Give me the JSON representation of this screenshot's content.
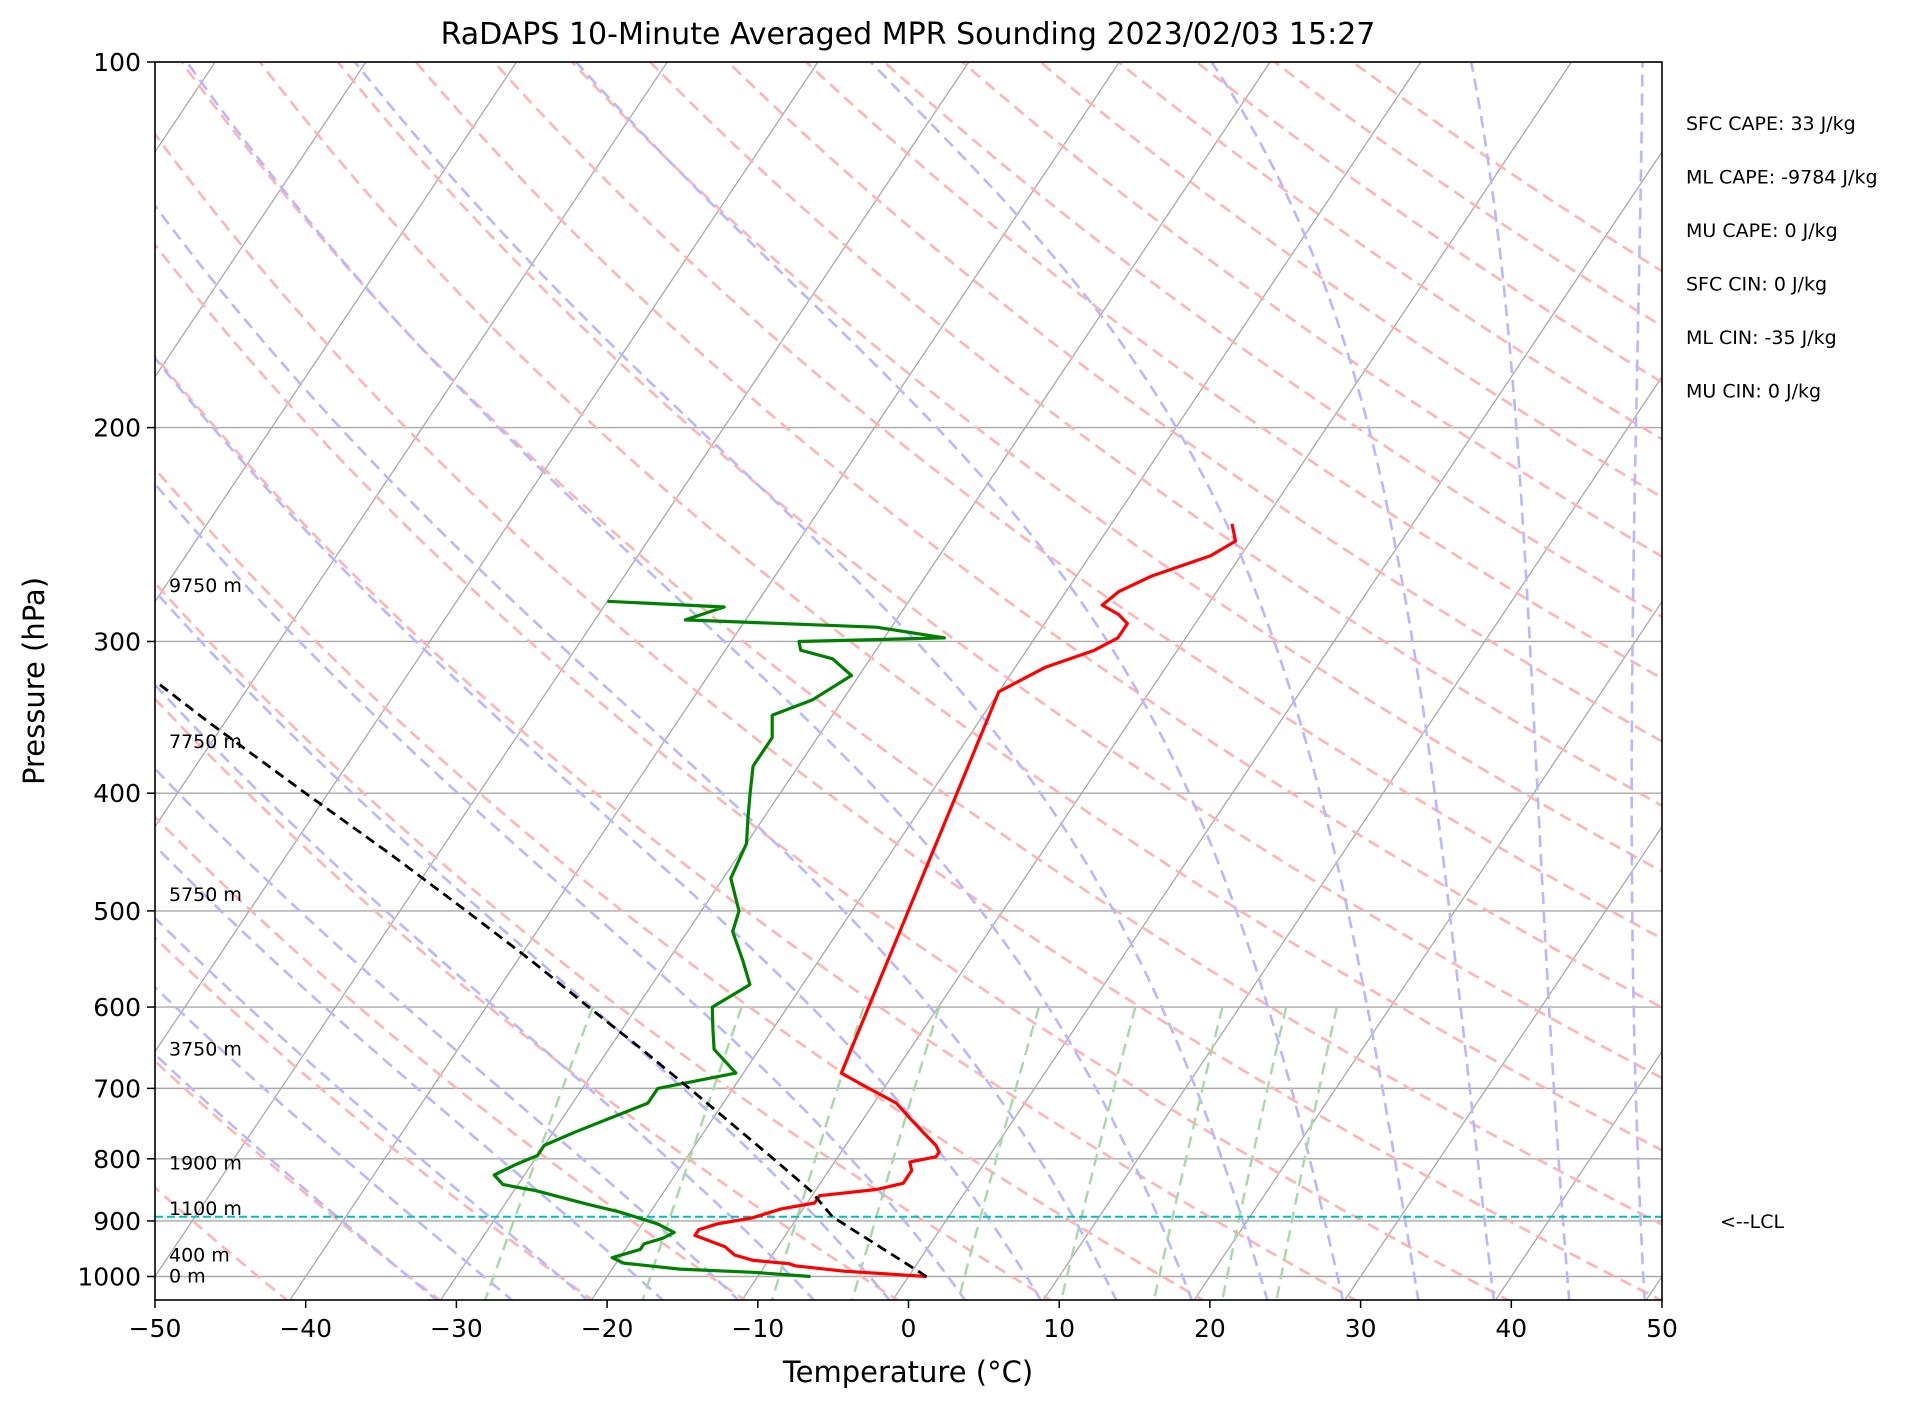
{
  "chart_data": {
    "type": "line",
    "chart_kind": "skew-T log-P sounding",
    "title": "RaDAPS 10-Minute Averaged MPR Sounding 2023/02/03 15:27",
    "xlabel": "Temperature (°C)",
    "ylabel": "Pressure (hPa)",
    "xlim": [
      -50,
      50
    ],
    "ylim": [
      1050,
      100
    ],
    "y_scale": "log",
    "x_ticks": [
      "−50",
      "−40",
      "−30",
      "−20",
      "−10",
      "0",
      "10",
      "20",
      "30",
      "40",
      "50"
    ],
    "x_tick_values": [
      -50,
      -40,
      -30,
      -20,
      -10,
      0,
      10,
      20,
      30,
      40,
      50
    ],
    "y_ticks": [
      "100",
      "200",
      "300",
      "400",
      "500",
      "600",
      "700",
      "800",
      "900",
      "1000"
    ],
    "y_tick_values": [
      100,
      200,
      300,
      400,
      500,
      600,
      700,
      800,
      900,
      1000
    ],
    "grid": true,
    "series": [
      {
        "key": "temperature",
        "color": "#ff0000",
        "points": [
          [
            1000,
            1.2
          ],
          [
            990,
            -4.5
          ],
          [
            980,
            -8.0
          ],
          [
            976,
            -8.5
          ],
          [
            970,
            -11.0
          ],
          [
            960,
            -12.5
          ],
          [
            945,
            -13.5
          ],
          [
            925,
            -16.0
          ],
          [
            915,
            -16.0
          ],
          [
            905,
            -15.0
          ],
          [
            895,
            -13.0
          ],
          [
            880,
            -11.5
          ],
          [
            870,
            -9.5
          ],
          [
            858,
            -9.5
          ],
          [
            848,
            -6.0
          ],
          [
            838,
            -4.5
          ],
          [
            818,
            -4.5
          ],
          [
            805,
            -5.0
          ],
          [
            797,
            -3.5
          ],
          [
            790,
            -3.5
          ],
          [
            780,
            -4.0
          ],
          [
            760,
            -5.5
          ],
          [
            740,
            -7.0
          ],
          [
            720,
            -8.5
          ],
          [
            700,
            -11.0
          ],
          [
            680,
            -13.5
          ],
          [
            330,
            -20.0
          ],
          [
            315,
            -18.0
          ],
          [
            305,
            -15.5
          ],
          [
            298,
            -14.5
          ],
          [
            290,
            -14.5
          ],
          [
            285,
            -15.5
          ],
          [
            280,
            -17.0
          ],
          [
            273,
            -16.5
          ],
          [
            265,
            -15.0
          ],
          [
            255,
            -12.0
          ],
          [
            248,
            -11.0
          ],
          [
            240,
            -12.0
          ]
        ]
      },
      {
        "key": "dewpoint",
        "color": "#008000",
        "points": [
          [
            1000,
            -6.5
          ],
          [
            992,
            -10.5
          ],
          [
            986,
            -15.5
          ],
          [
            975,
            -19.5
          ],
          [
            965,
            -20.5
          ],
          [
            950,
            -19.0
          ],
          [
            940,
            -19.0
          ],
          [
            930,
            -18.0
          ],
          [
            920,
            -17.5
          ],
          [
            905,
            -19.0
          ],
          [
            885,
            -22.0
          ],
          [
            872,
            -24.5
          ],
          [
            850,
            -28.5
          ],
          [
            840,
            -31.0
          ],
          [
            825,
            -32.0
          ],
          [
            808,
            -31.0
          ],
          [
            795,
            -30.0
          ],
          [
            780,
            -30.0
          ],
          [
            760,
            -28.5
          ],
          [
            720,
            -25.0
          ],
          [
            700,
            -25.0
          ],
          [
            680,
            -20.5
          ],
          [
            650,
            -23.0
          ],
          [
            625,
            -24.0
          ],
          [
            600,
            -25.0
          ],
          [
            575,
            -23.5
          ],
          [
            550,
            -25.0
          ],
          [
            520,
            -27.0
          ],
          [
            500,
            -27.5
          ],
          [
            470,
            -29.5
          ],
          [
            440,
            -30.0
          ],
          [
            420,
            -31.0
          ],
          [
            400,
            -32.0
          ],
          [
            380,
            -33.0
          ],
          [
            360,
            -33.0
          ],
          [
            345,
            -34.0
          ],
          [
            335,
            -32.0
          ],
          [
            320,
            -30.5
          ],
          [
            310,
            -32.5
          ],
          [
            305,
            -35.0
          ],
          [
            300,
            -35.5
          ],
          [
            298,
            -26.0
          ],
          [
            292,
            -31.0
          ],
          [
            288,
            -44.0
          ],
          [
            281,
            -42.0
          ],
          [
            278,
            -50.0
          ]
        ]
      },
      {
        "key": "parcel",
        "color": "#000000",
        "style": "dashed",
        "points": [
          [
            1000,
            1.2
          ],
          [
            893,
            -7.7
          ],
          [
            850,
            -10.3
          ],
          [
            800,
            -14.2
          ],
          [
            750,
            -18.4
          ],
          [
            700,
            -22.9
          ],
          [
            650,
            -27.8
          ],
          [
            600,
            -33.2
          ],
          [
            550,
            -39.0
          ],
          [
            500,
            -45.6
          ],
          [
            450,
            -53.0
          ],
          [
            400,
            -61.5
          ],
          [
            350,
            -71.0
          ],
          [
            305,
            -80.5
          ]
        ]
      }
    ],
    "lcl": {
      "pressure": 893,
      "label": "<--LCL"
    },
    "height_labels": [
      {
        "label": "9750 m",
        "pressure": 270
      },
      {
        "label": "7750 m",
        "pressure": 363
      },
      {
        "label": "5750 m",
        "pressure": 485
      },
      {
        "label": "3750 m",
        "pressure": 650
      },
      {
        "label": "1900 m",
        "pressure": 807
      },
      {
        "label": "1100 m",
        "pressure": 880
      },
      {
        "label": "400 m",
        "pressure": 961
      },
      {
        "label": "0 m",
        "pressure": 1000
      }
    ],
    "indices": [
      "SFC CAPE: 33 J/kg",
      "ML CAPE: -9784 J/kg",
      "MU CAPE: 0 J/kg",
      "SFC CIN: 0 J/kg",
      "ML CIN: -35 J/kg",
      "MU CIN: 0 J/kg"
    ],
    "background_lines": {
      "isotherm_color": "#a9a9a9",
      "dry_adiabat_color": "#ffb4b4",
      "moist_adiabat_color": "#b8b8ff",
      "mixing_ratio_color": "#a8d8a8",
      "lcl_line_color": "#00bfbf"
    }
  }
}
